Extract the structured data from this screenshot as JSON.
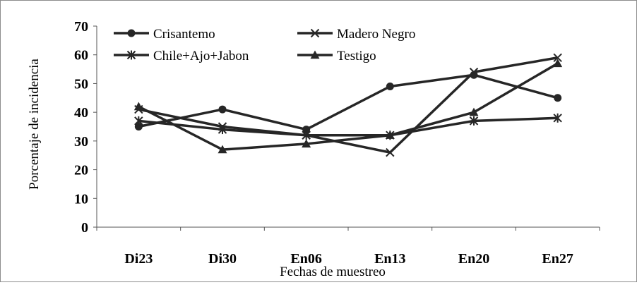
{
  "chart_data": {
    "type": "line",
    "title": "",
    "xlabel": "Fechas de muestreo",
    "ylabel": "Porcentaje de incidencia",
    "categories": [
      "Di23",
      "Di30",
      "En06",
      "En13",
      "En20",
      "En27"
    ],
    "yticks": [
      "0",
      "10",
      "20",
      "30",
      "40",
      "50",
      "60",
      "70"
    ],
    "ylim": [
      0,
      70
    ],
    "grid": false,
    "legend_position": "top-left, inside plot",
    "line_color": "#262626",
    "series": [
      {
        "name": "Crisantemo",
        "marker": "circle",
        "values": [
          35,
          41,
          34,
          49,
          53,
          45
        ]
      },
      {
        "name": "Madero Negro",
        "marker": "x",
        "values": [
          41,
          35,
          32,
          26,
          54,
          59
        ]
      },
      {
        "name": "Chile+Ajo+Jabon",
        "marker": "asterisk",
        "values": [
          37,
          34,
          32,
          32,
          37,
          38
        ]
      },
      {
        "name": "Testigo",
        "marker": "triangle",
        "values": [
          42,
          27,
          29,
          32,
          40,
          57
        ]
      }
    ]
  }
}
